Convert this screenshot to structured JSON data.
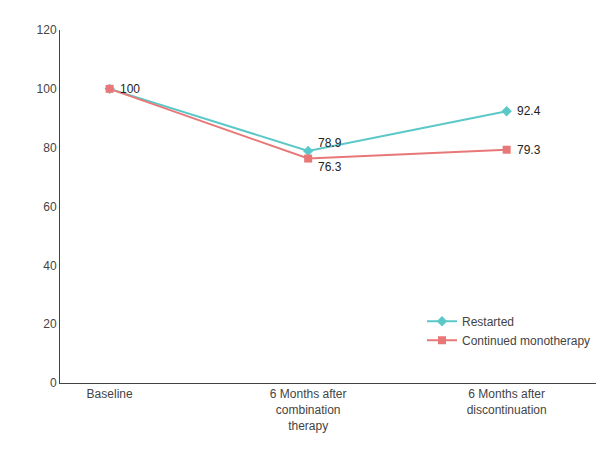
{
  "chart_data": {
    "type": "line",
    "categories": [
      "Baseline",
      "6 Months after\ncombination\ntherapy",
      "6 Months after\ndiscontinuation"
    ],
    "series": [
      {
        "name": "Restarted",
        "values": [
          100,
          78.9,
          92.4
        ],
        "color": "#5BC8C8",
        "marker": "diamond"
      },
      {
        "name": "Continued monotherapy",
        "values": [
          100,
          76.3,
          79.3
        ],
        "color": "#E87878",
        "marker": "square"
      }
    ],
    "annotations": [
      {
        "category": "Baseline",
        "y": 100,
        "text": "100"
      },
      {
        "category": "6 Months after\ncombination\ntherapy",
        "y": 78.9,
        "text": "78.9"
      },
      {
        "category": "6 Months after\ncombination\ntherapy",
        "y": 76.3,
        "text": "76.3"
      },
      {
        "category": "6 Months after\ndiscontinuation",
        "y": 92.4,
        "text": "92.4"
      },
      {
        "category": "6 Months after\ndiscontinuation",
        "y": 79.3,
        "text": "79.3"
      }
    ],
    "xlim": [
      -0.25,
      2.45
    ],
    "ylim": [
      0,
      120
    ],
    "yticks": [
      0,
      20,
      40,
      60,
      80,
      100,
      120
    ],
    "grid": false,
    "legend": "lower right"
  }
}
